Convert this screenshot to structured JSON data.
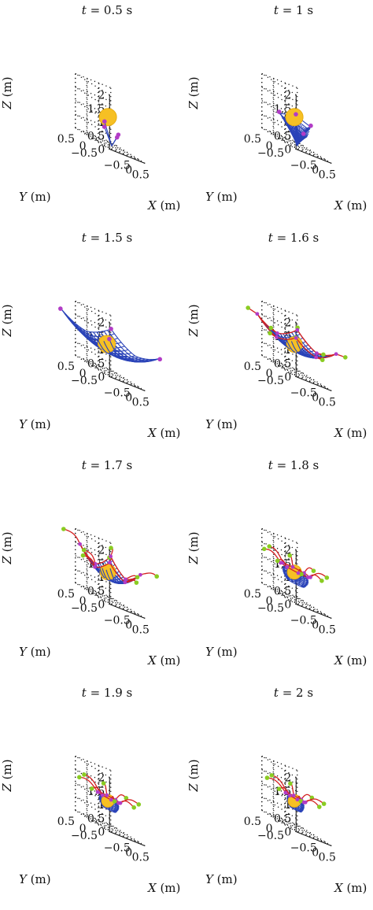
{
  "figure": {
    "panels": [
      {
        "title_var": "t",
        "title_rest": " = 0.5 s",
        "stage": 0
      },
      {
        "title_var": "t",
        "title_rest": " = 1 s",
        "stage": 1
      },
      {
        "title_var": "t",
        "title_rest": " = 1.5 s",
        "stage": 2
      },
      {
        "title_var": "t",
        "title_rest": " = 1.6 s",
        "stage": 3
      },
      {
        "title_var": "t",
        "title_rest": " = 1.7 s",
        "stage": 4
      },
      {
        "title_var": "t",
        "title_rest": " = 1.8 s",
        "stage": 5
      },
      {
        "title_var": "t",
        "title_rest": " = 1.9 s",
        "stage": 6
      },
      {
        "title_var": "t",
        "title_rest": " = 2 s",
        "stage": 7
      }
    ],
    "axes": {
      "z_label_var": "Z",
      "z_label_unit": " (m)",
      "y_label_var": "Y",
      "y_label_unit": " (m)",
      "x_label_var": "X",
      "x_label_unit": " (m)",
      "z_ticks": [
        "0",
        "0.5",
        "1",
        "1.5",
        "2"
      ],
      "y_ticks": [
        "0.5",
        "0",
        "−0.5"
      ],
      "x_ticks": [
        "−0.5",
        "0",
        "0.5"
      ]
    },
    "colors": {
      "ball": "#f6c024",
      "net": "#2a43b8",
      "tether": "#d42121",
      "corner_mass": "#b23cc6",
      "tip_node": "#8acc22"
    }
  }
}
